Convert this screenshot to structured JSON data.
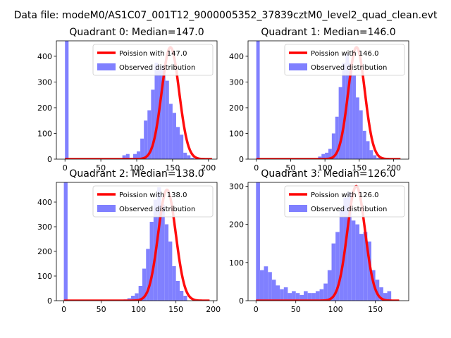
{
  "figure": {
    "suptitle": "Data file: modeM0/AS1C07_001T12_9000005352_37839cztM0_level2_quad_clean.evt"
  },
  "chart_data": [
    {
      "type": "bar",
      "title": "Quadrant 0: Median=147.0",
      "xlim": [
        -12,
        212
      ],
      "ylim": [
        0,
        460
      ],
      "xticks": [
        0,
        50,
        100,
        150,
        200
      ],
      "yticks": [
        0,
        100,
        200,
        300,
        400
      ],
      "hist": {
        "name": "Observed distribution",
        "color": "#8080ff",
        "bin_start": 0,
        "bin_width": 5,
        "values": [
          460,
          0,
          0,
          0,
          0,
          0,
          0,
          0,
          0,
          0,
          0,
          0,
          0,
          0,
          0,
          0,
          15,
          20,
          5,
          20,
          30,
          80,
          150,
          190,
          270,
          375,
          350,
          365,
          305,
          215,
          180,
          125,
          95,
          25,
          15,
          5,
          0,
          0,
          0,
          0,
          0,
          0
        ]
      },
      "fit": {
        "name": "Poission with 147.0",
        "color": "#ff0000",
        "mean": 147.0,
        "peak": 435,
        "x_start": 0,
        "x_end": 205
      },
      "legend": [
        "Poission with 147.0",
        "Observed distribution"
      ]
    },
    {
      "type": "bar",
      "title": "Quadrant 1: Median=146.0",
      "xlim": [
        -12,
        222
      ],
      "ylim": [
        0,
        460
      ],
      "xticks": [
        0,
        50,
        100,
        150,
        200
      ],
      "yticks": [
        0,
        100,
        200,
        300,
        400
      ],
      "hist": {
        "name": "Observed distribution",
        "color": "#8080ff",
        "bin_start": 0,
        "bin_width": 5,
        "values": [
          460,
          0,
          0,
          0,
          0,
          0,
          0,
          0,
          0,
          0,
          0,
          0,
          0,
          0,
          0,
          0,
          0,
          0,
          10,
          20,
          25,
          40,
          100,
          165,
          280,
          375,
          410,
          375,
          325,
          240,
          190,
          110,
          70,
          35,
          15,
          5,
          0,
          0,
          0,
          0,
          0,
          0,
          0
        ]
      },
      "fit": {
        "name": "Poission with 146.0",
        "color": "#ff0000",
        "mean": 146.0,
        "peak": 435,
        "x_start": 0,
        "x_end": 210
      },
      "legend": [
        "Poission with 146.0",
        "Observed distribution"
      ]
    },
    {
      "type": "bar",
      "title": "Quadrant 2: Median=138.0",
      "xlim": [
        -10,
        205
      ],
      "ylim": [
        0,
        480
      ],
      "xticks": [
        0,
        50,
        100,
        150,
        200
      ],
      "yticks": [
        0,
        100,
        200,
        300,
        400
      ],
      "hist": {
        "name": "Observed distribution",
        "color": "#8080ff",
        "bin_start": 0,
        "bin_width": 5,
        "values": [
          480,
          0,
          0,
          0,
          0,
          0,
          0,
          0,
          0,
          0,
          0,
          0,
          0,
          0,
          0,
          0,
          5,
          10,
          20,
          30,
          60,
          130,
          210,
          320,
          410,
          460,
          390,
          310,
          240,
          140,
          80,
          40,
          20,
          0,
          0,
          0,
          0,
          0,
          0,
          0,
          0
        ]
      },
      "fit": {
        "name": "Poission with 138.0",
        "color": "#ff0000",
        "mean": 138.0,
        "peak": 450,
        "x_start": 0,
        "x_end": 195
      },
      "legend": [
        "Poission with 138.0",
        "Observed distribution"
      ]
    },
    {
      "type": "bar",
      "title": "Quadrant 3: Median=126.0",
      "xlim": [
        -10,
        192
      ],
      "ylim": [
        0,
        310
      ],
      "xticks": [
        0,
        50,
        100,
        150
      ],
      "yticks": [
        0,
        100,
        200,
        300
      ],
      "hist": {
        "name": "Observed distribution",
        "color": "#8080ff",
        "bin_start": 0,
        "bin_width": 5,
        "values": [
          310,
          80,
          90,
          75,
          55,
          40,
          30,
          35,
          20,
          25,
          20,
          15,
          25,
          20,
          20,
          25,
          30,
          45,
          80,
          150,
          180,
          240,
          270,
          285,
          210,
          200,
          175,
          180,
          155,
          80,
          55,
          35,
          20,
          25,
          0,
          0,
          0
        ]
      },
      "fit": {
        "name": "Poission with 126.0",
        "color": "#ff0000",
        "mean": 126.0,
        "peak": 300,
        "x_start": 0,
        "x_end": 180
      },
      "legend": [
        "Poission with 126.0",
        "Observed distribution"
      ]
    }
  ]
}
